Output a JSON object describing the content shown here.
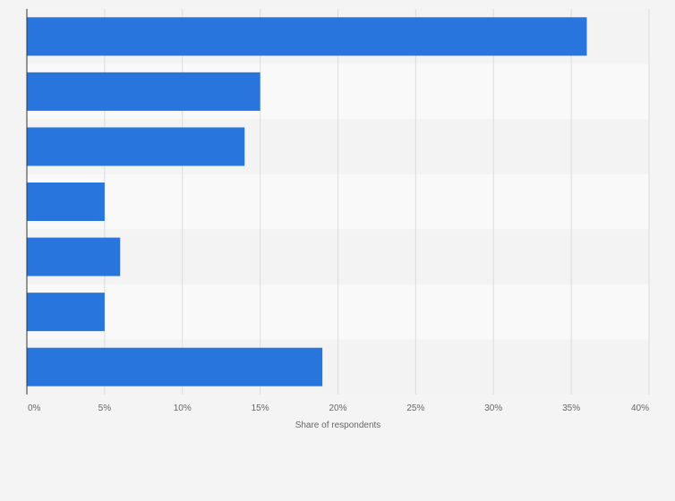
{
  "chart_data": {
    "type": "bar",
    "orientation": "horizontal",
    "categories": [
      "",
      "",
      "",
      "",
      "",
      "",
      ""
    ],
    "values": [
      36,
      15,
      14,
      5,
      6,
      5,
      19
    ],
    "xlabel": "Share of respondents",
    "ylabel": "",
    "xlim": [
      0,
      40
    ],
    "tick_values": [
      0,
      5,
      10,
      15,
      20,
      25,
      30,
      35,
      40
    ],
    "tick_labels": [
      "0%",
      "5%",
      "10%",
      "15%",
      "20%",
      "25%",
      "30%",
      "35%",
      "40%"
    ],
    "grid": true,
    "legend": "none",
    "colors": {
      "bar": "#2876dd",
      "background": "#f4f4f4",
      "band_light": "#f9f9f9",
      "band_dark": "#f3f3f3",
      "grid": "#dcdcdc",
      "axis": "#333333",
      "text": "#666666"
    }
  }
}
